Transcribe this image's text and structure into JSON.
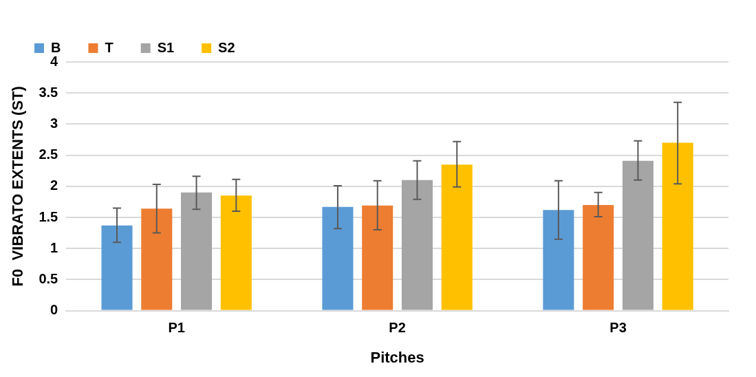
{
  "chart_data": {
    "type": "bar",
    "xlabel": "Pitches",
    "ylabel": "F0  VIBRATO EXTENTS (ST)",
    "categories": [
      "P1",
      "P2",
      "P3"
    ],
    "series": [
      {
        "name": "B",
        "color": "#5b9bd5",
        "values": [
          1.37,
          1.67,
          1.62
        ],
        "errors": [
          [
            1.1,
            1.65
          ],
          [
            1.32,
            2.01
          ],
          [
            1.15,
            2.09
          ]
        ]
      },
      {
        "name": "T",
        "color": "#ed7d31",
        "values": [
          1.64,
          1.69,
          1.7
        ],
        "errors": [
          [
            1.25,
            2.03
          ],
          [
            1.3,
            2.09
          ],
          [
            1.51,
            1.9
          ]
        ]
      },
      {
        "name": "S1",
        "color": "#a5a5a5",
        "values": [
          1.9,
          2.1,
          2.41
        ],
        "errors": [
          [
            1.63,
            2.16
          ],
          [
            1.79,
            2.41
          ],
          [
            2.1,
            2.73
          ]
        ]
      },
      {
        "name": "S2",
        "color": "#ffc000",
        "values": [
          1.85,
          2.35,
          2.7
        ],
        "errors": [
          [
            1.6,
            2.11
          ],
          [
            1.99,
            2.72
          ],
          [
            2.04,
            3.35
          ]
        ]
      }
    ],
    "ylim": [
      0,
      4
    ],
    "yticks": [
      0,
      0.5,
      1,
      1.5,
      2,
      2.5,
      3,
      3.5,
      4
    ],
    "grid": "y",
    "legend": "top left"
  }
}
